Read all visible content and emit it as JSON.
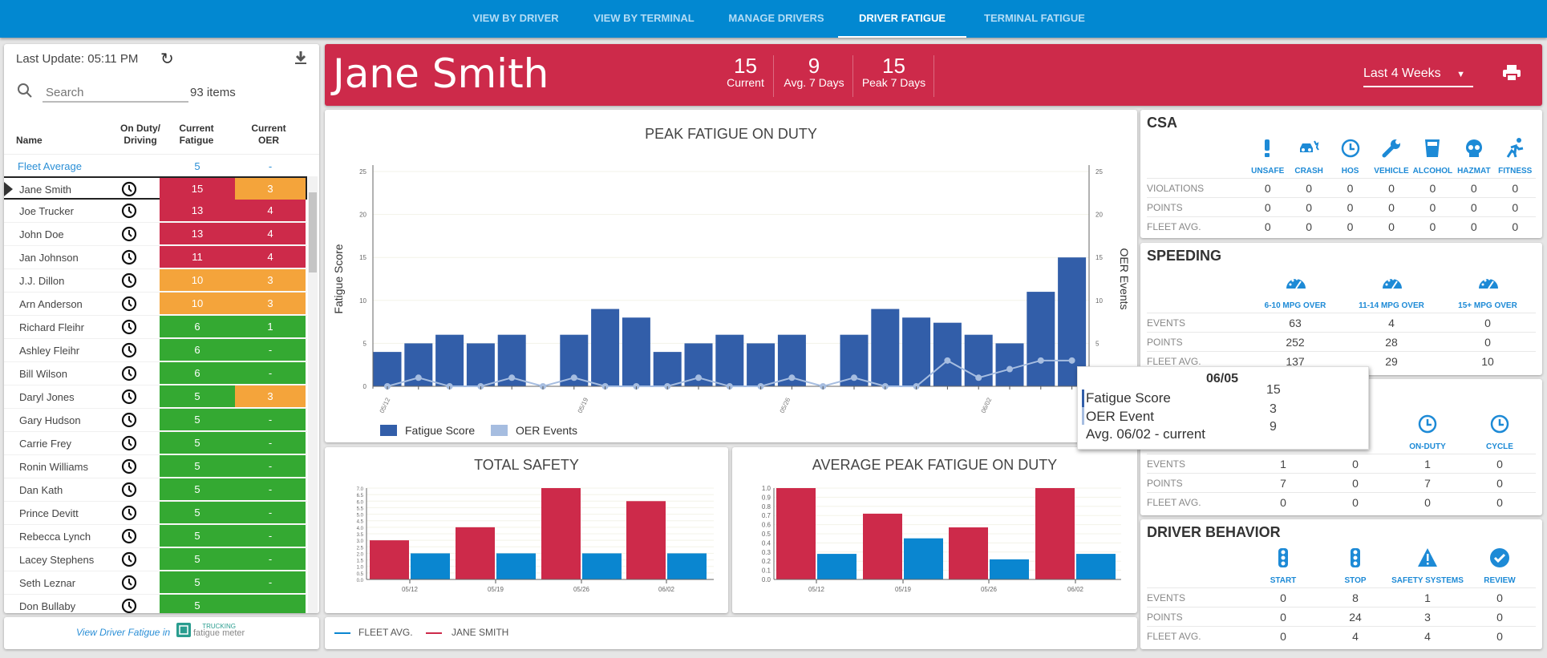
{
  "nav": {
    "tabs": [
      {
        "label": "VIEW BY DRIVER"
      },
      {
        "label": "VIEW BY TERMINAL"
      },
      {
        "label": "MANAGE DRIVERS"
      },
      {
        "label": "DRIVER FATIGUE",
        "active": true
      },
      {
        "label": "TERMINAL FATIGUE"
      }
    ]
  },
  "sidebar": {
    "last_update": "Last Update: 05:11 PM",
    "search_placeholder": "Search",
    "item_count": "93 items",
    "columns": {
      "name": "Name",
      "on_duty": "On Duty/ Driving",
      "fatigue": "Current Fatigue",
      "oer": "Current OER"
    },
    "fleet_average": {
      "name": "Fleet Average",
      "fatigue": "5",
      "oer": "-"
    },
    "drivers": [
      {
        "name": "Jane Smith",
        "fatigue": "15",
        "fatigue_level": "high",
        "oer": "3",
        "oer_level": "medium",
        "selected": true
      },
      {
        "name": "Joe Trucker",
        "fatigue": "13",
        "fatigue_level": "high",
        "oer": "4",
        "oer_level": "high"
      },
      {
        "name": "John Doe",
        "fatigue": "13",
        "fatigue_level": "high",
        "oer": "4",
        "oer_level": "high"
      },
      {
        "name": "Jan Johnson",
        "fatigue": "11",
        "fatigue_level": "high",
        "oer": "4",
        "oer_level": "high"
      },
      {
        "name": "J.J. Dillon",
        "fatigue": "10",
        "fatigue_level": "medium",
        "oer": "3",
        "oer_level": "medium"
      },
      {
        "name": "Arn Anderson",
        "fatigue": "10",
        "fatigue_level": "medium",
        "oer": "3",
        "oer_level": "medium"
      },
      {
        "name": "Richard Fleihr",
        "fatigue": "6",
        "fatigue_level": "low",
        "oer": "1",
        "oer_level": "low"
      },
      {
        "name": "Ashley Fleihr",
        "fatigue": "6",
        "fatigue_level": "low",
        "oer": "-",
        "oer_level": "low"
      },
      {
        "name": "Bill Wilson",
        "fatigue": "6",
        "fatigue_level": "low",
        "oer": "-",
        "oer_level": "low"
      },
      {
        "name": "Daryl Jones",
        "fatigue": "5",
        "fatigue_level": "low",
        "oer": "3",
        "oer_level": "medium"
      },
      {
        "name": "Gary Hudson",
        "fatigue": "5",
        "fatigue_level": "low",
        "oer": "-",
        "oer_level": "low"
      },
      {
        "name": "Carrie Frey",
        "fatigue": "5",
        "fatigue_level": "low",
        "oer": "-",
        "oer_level": "low"
      },
      {
        "name": "Ronin Williams",
        "fatigue": "5",
        "fatigue_level": "low",
        "oer": "-",
        "oer_level": "low"
      },
      {
        "name": "Dan Kath",
        "fatigue": "5",
        "fatigue_level": "low",
        "oer": "-",
        "oer_level": "low"
      },
      {
        "name": "Prince Devitt",
        "fatigue": "5",
        "fatigue_level": "low",
        "oer": "-",
        "oer_level": "low"
      },
      {
        "name": "Rebecca Lynch",
        "fatigue": "5",
        "fatigue_level": "low",
        "oer": "-",
        "oer_level": "low"
      },
      {
        "name": "Lacey Stephens",
        "fatigue": "5",
        "fatigue_level": "low",
        "oer": "-",
        "oer_level": "low"
      },
      {
        "name": "Seth Leznar",
        "fatigue": "5",
        "fatigue_level": "low",
        "oer": "-",
        "oer_level": "low"
      },
      {
        "name": "Don Bullaby",
        "fatigue": "5",
        "fatigue_level": "low",
        "oer": "",
        "oer_level": "low"
      }
    ],
    "footer_link": "View Driver Fatigue in",
    "logo_text": "TRUCKING fatigue meter"
  },
  "header": {
    "driver_name": "Jane Smith",
    "stats": [
      {
        "value": "15",
        "label": "Current"
      },
      {
        "value": "9",
        "label": "Avg. 7 Days"
      },
      {
        "value": "15",
        "label": "Peak 7 Days"
      }
    ],
    "period": "Last 4 Weeks"
  },
  "colors": {
    "nav": "#0288d1",
    "high": "#cd2a4a",
    "medium": "#f4a43b",
    "low": "#34a932",
    "fatigue_bar": "#325ea9",
    "oer_line": "#a6bde0",
    "fleet": "#0a86d0",
    "driver": "#cd2a4a",
    "icon": "#1d8ad6"
  },
  "chart_data": [
    {
      "type": "bar",
      "title": "PEAK FATIGUE ON DUTY",
      "ylabel": "Fatigue Score",
      "ylabel_right": "OER Events",
      "ylim": [
        0,
        25
      ],
      "yticks": [
        "0",
        "5",
        "10",
        "15",
        "20",
        "25"
      ],
      "x_tick_labels": [
        "05/12",
        "05/19",
        "05/26",
        "06/02"
      ],
      "grid": true,
      "legend": "bottom-left",
      "series": [
        {
          "name": "Fatigue Score",
          "type": "bar",
          "values": [
            4,
            5,
            6,
            5,
            6,
            0,
            6,
            9,
            8,
            4,
            5,
            6,
            5,
            6,
            0,
            6,
            9,
            8,
            7.4,
            6,
            5,
            11,
            15
          ]
        },
        {
          "name": "OER Events",
          "type": "line",
          "values": [
            0,
            1,
            0,
            0,
            1,
            0,
            1,
            0,
            0,
            0,
            1,
            0,
            0,
            1,
            0,
            1,
            0,
            0,
            3,
            1,
            2,
            3,
            3
          ]
        }
      ]
    },
    {
      "type": "bar",
      "title": "TOTAL SAFETY",
      "categories": [
        "05/12",
        "05/19",
        "05/26",
        "06/02"
      ],
      "ylim": [
        0,
        7
      ],
      "yticks": [
        "0.0",
        "0.5",
        "1.0",
        "1.5",
        "2.0",
        "2.5",
        "3.0",
        "3.5",
        "4.0",
        "4.5",
        "5.0",
        "5.5",
        "6.0",
        "6.5",
        "7.0"
      ],
      "series": [
        {
          "name": "JANE SMITH",
          "values": [
            3,
            4,
            7,
            6
          ]
        },
        {
          "name": "FLEET AVG.",
          "values": [
            2,
            2,
            2,
            2
          ]
        }
      ]
    },
    {
      "type": "bar",
      "title": "AVERAGE PEAK FATIGUE ON DUTY",
      "categories": [
        "05/12",
        "05/19",
        "05/26",
        "06/02"
      ],
      "ylim": [
        0,
        1
      ],
      "yticks": [
        "0.0",
        "0.1",
        "0.2",
        "0.3",
        "0.4",
        "0.5",
        "0.6",
        "0.7",
        "0.8",
        "0.9",
        "1.0"
      ],
      "series": [
        {
          "name": "JANE SMITH",
          "values": [
            1.0,
            0.72,
            0.57,
            1.0
          ]
        },
        {
          "name": "FLEET AVG.",
          "values": [
            0.28,
            0.45,
            0.22,
            0.28
          ]
        }
      ]
    }
  ],
  "legend": {
    "fleet": "FLEET AVG.",
    "driver": "JANE SMITH"
  },
  "tooltip": {
    "date": "06/05",
    "rows": [
      {
        "label": "Fatigue Score",
        "value": "15"
      },
      {
        "label": "OER Event",
        "value": "3"
      },
      {
        "label": "Avg. 06/02 - current",
        "value": "9"
      }
    ]
  },
  "csa": {
    "title": "CSA",
    "columns": [
      {
        "label": "UNSAFE",
        "icon": "exclamation-icon"
      },
      {
        "label": "CRASH",
        "icon": "car-crash-icon"
      },
      {
        "label": "HOS",
        "icon": "clock-icon"
      },
      {
        "label": "VEHICLE",
        "icon": "wrench-icon"
      },
      {
        "label": "ALCOHOL",
        "icon": "glass-icon"
      },
      {
        "label": "HAZMAT",
        "icon": "skull-icon"
      },
      {
        "label": "FITNESS",
        "icon": "running-icon"
      }
    ],
    "rows": [
      {
        "label": "VIOLATIONS",
        "values": [
          "0",
          "0",
          "0",
          "0",
          "0",
          "0",
          "0"
        ]
      },
      {
        "label": "POINTS",
        "values": [
          "0",
          "0",
          "0",
          "0",
          "0",
          "0",
          "0"
        ]
      },
      {
        "label": "FLEET AVG.",
        "values": [
          "0",
          "0",
          "0",
          "0",
          "0",
          "0",
          "0"
        ]
      }
    ]
  },
  "speeding": {
    "title": "SPEEDING",
    "columns": [
      {
        "label": "6-10 MPG OVER",
        "icon": "speedometer-icon"
      },
      {
        "label": "11-14 MPG OVER",
        "icon": "speedometer-icon"
      },
      {
        "label": "15+ MPG OVER",
        "icon": "speedometer-icon"
      }
    ],
    "rows": [
      {
        "label": "EVENTS",
        "values": [
          "63",
          "4",
          "0"
        ]
      },
      {
        "label": "POINTS",
        "values": [
          "252",
          "28",
          "0"
        ]
      },
      {
        "label": "FLEET AVG.",
        "values": [
          "137",
          "29",
          "10"
        ]
      }
    ]
  },
  "hos": {
    "columns": [
      {
        "label": ""
      },
      {
        "label": ""
      },
      {
        "label": "ON-DUTY",
        "icon": "clock-icon"
      },
      {
        "label": "CYCLE",
        "icon": "clock-icon"
      }
    ],
    "rows": [
      {
        "label": "EVENTS",
        "values": [
          "1",
          "0",
          "1",
          "0"
        ]
      },
      {
        "label": "POINTS",
        "values": [
          "7",
          "0",
          "7",
          "0"
        ]
      },
      {
        "label": "FLEET AVG.",
        "values": [
          "0",
          "0",
          "0",
          "0"
        ]
      }
    ]
  },
  "behavior": {
    "title": "DRIVER BEHAVIOR",
    "columns": [
      {
        "label": "START",
        "icon": "traffic-light-icon"
      },
      {
        "label": "STOP",
        "icon": "traffic-light-icon"
      },
      {
        "label": "SAFETY SYSTEMS",
        "icon": "warning-icon"
      },
      {
        "label": "REVIEW",
        "icon": "check-circle-icon"
      }
    ],
    "rows": [
      {
        "label": "EVENTS",
        "values": [
          "0",
          "8",
          "1",
          "0"
        ]
      },
      {
        "label": "POINTS",
        "values": [
          "0",
          "24",
          "3",
          "0"
        ]
      },
      {
        "label": "FLEET AVG.",
        "values": [
          "0",
          "4",
          "4",
          "0"
        ]
      }
    ]
  }
}
